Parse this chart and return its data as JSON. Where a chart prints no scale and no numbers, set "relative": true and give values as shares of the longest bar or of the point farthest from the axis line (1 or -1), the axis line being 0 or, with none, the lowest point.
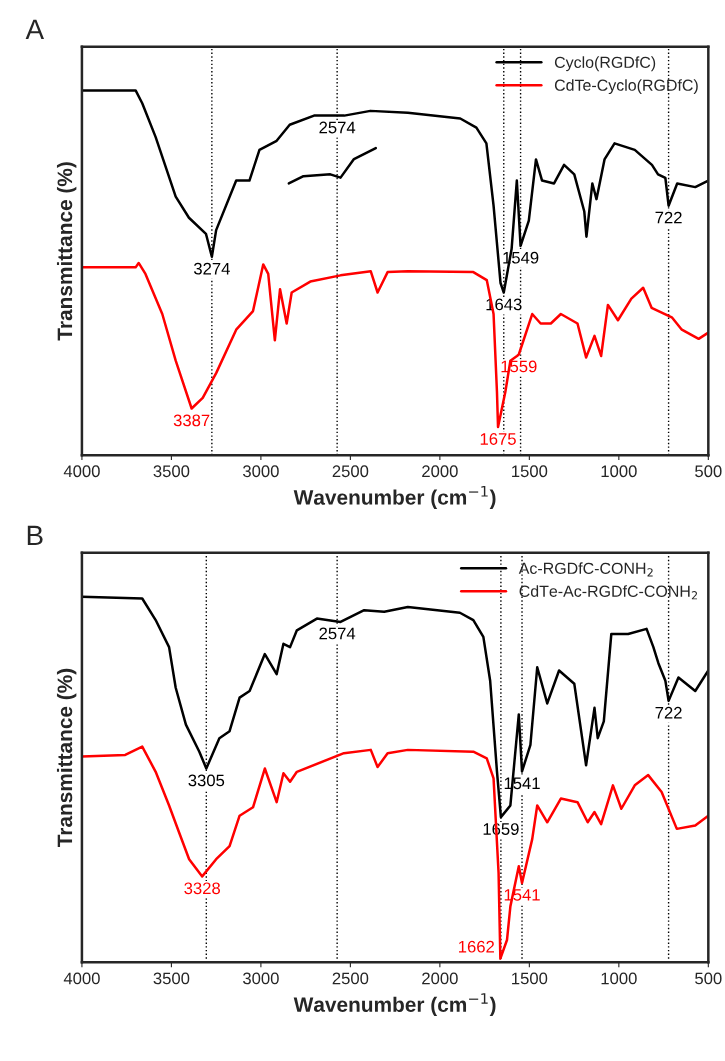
{
  "chart_data": [
    {
      "type": "line",
      "title": "A",
      "xlabel": "Wavenumber (cm$^{−1}$)",
      "ylabel": "Transmittance (%)",
      "relative": true,
      "xlim": [
        4000,
        500
      ],
      "xticks": [
        4000,
        3500,
        3000,
        2500,
        2000,
        1500,
        1000,
        500
      ],
      "tick_labels": "x",
      "grid": false,
      "legend": "top right",
      "line_style": "solid",
      "series": [
        {
          "name": "Cyclo(RGDfC)",
          "color": "#000000",
          "x": [
            4000,
            3700,
            3663,
            3588,
            3476,
            3402,
            3307,
            3274,
            3250,
            3138,
            3064,
            3008,
            2912,
            2839,
            2703,
            2534,
            2388,
            2179,
            1886,
            1796,
            1740,
            1700,
            1661,
            1643,
            1599,
            1570,
            1549,
            1503,
            1463,
            1429,
            1362,
            1306,
            1249,
            1193,
            1181,
            1148,
            1125,
            1080,
            1024,
            911,
            815,
            781,
            740,
            722,
            674,
            573,
            500
          ],
          "values": [
            1.0,
            1.0,
            0.965,
            0.872,
            0.709,
            0.651,
            0.607,
            0.544,
            0.617,
            0.753,
            0.753,
            0.837,
            0.862,
            0.906,
            0.931,
            0.931,
            0.944,
            0.939,
            0.923,
            0.898,
            0.855,
            0.684,
            0.472,
            0.446,
            0.566,
            0.753,
            0.574,
            0.643,
            0.811,
            0.753,
            0.745,
            0.796,
            0.77,
            0.668,
            0.599,
            0.745,
            0.702,
            0.811,
            0.855,
            0.837,
            0.796,
            0.77,
            0.76,
            0.684,
            0.745,
            0.735,
            0.753
          ]
        },
        {
          "color": "#000000",
          "x": [
            2844,
            2762,
            2612,
            2555,
            2480,
            2358
          ],
          "values": [
            0.745,
            0.765,
            0.77,
            0.761,
            0.812,
            0.842
          ]
        },
        {
          "name": "CdTe-Cyclo(RGDfC)",
          "color": "#ff0000",
          "x": [
            4000,
            3700,
            3683,
            3645,
            3551,
            3476,
            3387,
            3325,
            3250,
            3138,
            3044,
            2987,
            2959,
            2922,
            2893,
            2856,
            2828,
            2724,
            2555,
            2386,
            2348,
            2292,
            2179,
            1813,
            1738,
            1700,
            1681,
            1675,
            1634,
            1606,
            1569,
            1559,
            1484,
            1437,
            1380,
            1324,
            1231,
            1183,
            1136,
            1099,
            1061,
            1005,
            930,
            864,
            817,
            704,
            648,
            554,
            500
          ],
          "values": [
            0.515,
            0.515,
            0.527,
            0.497,
            0.387,
            0.259,
            0.128,
            0.157,
            0.225,
            0.344,
            0.395,
            0.523,
            0.497,
            0.315,
            0.455,
            0.361,
            0.446,
            0.476,
            0.493,
            0.504,
            0.446,
            0.502,
            0.504,
            0.502,
            0.48,
            0.387,
            0.174,
            0.077,
            0.174,
            0.259,
            0.272,
            0.276,
            0.387,
            0.361,
            0.361,
            0.387,
            0.361,
            0.268,
            0.327,
            0.272,
            0.412,
            0.37,
            0.429,
            0.459,
            0.404,
            0.378,
            0.344,
            0.319,
            0.336
          ]
        }
      ],
      "ref_lines": [
        {
          "axis": "x",
          "value": 3274,
          "color": "#000000",
          "line_style": "dotted"
        },
        {
          "axis": "x",
          "value": 2574,
          "color": "#000000",
          "line_style": "dotted"
        },
        {
          "axis": "x",
          "value": 1643,
          "color": "#000000",
          "line_style": "dotted"
        },
        {
          "axis": "x",
          "value": 1549,
          "color": "#000000",
          "line_style": "dotted"
        },
        {
          "axis": "x",
          "value": 722,
          "color": "#000000",
          "line_style": "dotted"
        }
      ],
      "annotations": [
        {
          "text": "3274",
          "x": 3274,
          "y": 0.544
        },
        {
          "text": "2574",
          "x": 2574,
          "y": 0.931
        },
        {
          "text": "1549",
          "x": 1549,
          "y": 0.574
        },
        {
          "text": "1643",
          "x": 1643,
          "y": 0.446
        },
        {
          "text": "722",
          "x": 722,
          "y": 0.684
        },
        {
          "text": "3387",
          "x": 3387,
          "y": 0.128
        },
        {
          "text": "1559",
          "x": 1559,
          "y": 0.276
        },
        {
          "text": "1675",
          "x": 1675,
          "y": 0.077
        }
      ]
    },
    {
      "type": "line",
      "title": "B",
      "xlabel": "Wavenumber (cm$^{−1}$)",
      "ylabel": "Transmittance (%)",
      "relative": true,
      "xlim": [
        4000,
        500
      ],
      "xticks": [
        4000,
        3500,
        3000,
        2500,
        2000,
        1500,
        1000,
        500
      ],
      "tick_labels": "x",
      "grid": false,
      "legend": "top right",
      "line_style": "solid",
      "series": [
        {
          "name": "Ac-RGDfC-CONH$_{2}$",
          "color": "#000000",
          "x": [
            4000,
            3663,
            3588,
            3513,
            3476,
            3419,
            3344,
            3305,
            3232,
            3175,
            3119,
            3063,
            2978,
            2912,
            2874,
            2837,
            2799,
            2687,
            2555,
            2423,
            2311,
            2179,
            1888,
            1813,
            1757,
            1719,
            1681,
            1659,
            1606,
            1559,
            1541,
            1494,
            1456,
            1400,
            1334,
            1249,
            1183,
            1136,
            1118,
            1084,
            1042,
            948,
            845,
            807,
            779,
            740,
            722,
            667,
            573,
            500
          ],
          "values": [
            1.0,
            0.995,
            0.936,
            0.862,
            0.751,
            0.65,
            0.576,
            0.53,
            0.613,
            0.632,
            0.724,
            0.742,
            0.843,
            0.788,
            0.871,
            0.862,
            0.908,
            0.94,
            0.931,
            0.963,
            0.959,
            0.972,
            0.956,
            0.936,
            0.89,
            0.77,
            0.522,
            0.397,
            0.429,
            0.678,
            0.522,
            0.595,
            0.807,
            0.708,
            0.798,
            0.762,
            0.539,
            0.696,
            0.613,
            0.659,
            0.898,
            0.898,
            0.912,
            0.862,
            0.818,
            0.77,
            0.715,
            0.779,
            0.742,
            0.798
          ]
        },
        {
          "name": "CdTe-Ac-RGDfC-CONH$_{2}$",
          "color": "#ff0000",
          "x": [
            4000,
            3758,
            3663,
            3588,
            3513,
            3457,
            3401,
            3328,
            3250,
            3175,
            3119,
            3044,
            2978,
            2912,
            2874,
            2837,
            2799,
            2536,
            2386,
            2348,
            2292,
            2179,
            1813,
            1738,
            1700,
            1672,
            1662,
            1625,
            1606,
            1559,
            1541,
            1484,
            1456,
            1400,
            1324,
            1231,
            1174,
            1136,
            1099,
            1033,
            986,
            911,
            836,
            761,
            676,
            573,
            500
          ],
          "values": [
            0.563,
            0.567,
            0.59,
            0.521,
            0.429,
            0.355,
            0.282,
            0.235,
            0.282,
            0.318,
            0.401,
            0.424,
            0.53,
            0.438,
            0.517,
            0.494,
            0.521,
            0.572,
            0.581,
            0.534,
            0.572,
            0.581,
            0.576,
            0.558,
            0.503,
            0.245,
            0.01,
            0.061,
            0.153,
            0.263,
            0.217,
            0.337,
            0.429,
            0.383,
            0.448,
            0.438,
            0.383,
            0.411,
            0.378,
            0.484,
            0.42,
            0.484,
            0.512,
            0.466,
            0.365,
            0.374,
            0.401
          ]
        }
      ],
      "ref_lines": [
        {
          "axis": "x",
          "value": 3305,
          "color": "#000000",
          "line_style": "dotted"
        },
        {
          "axis": "x",
          "value": 2574,
          "color": "#000000",
          "line_style": "dotted"
        },
        {
          "axis": "x",
          "value": 1659,
          "color": "#000000",
          "line_style": "dotted"
        },
        {
          "axis": "x",
          "value": 1541,
          "color": "#000000",
          "line_style": "dotted"
        },
        {
          "axis": "x",
          "value": 722,
          "color": "#000000",
          "line_style": "dotted"
        }
      ],
      "annotations": [
        {
          "text": "3305",
          "x": 3305,
          "y": 0.53
        },
        {
          "text": "2574",
          "x": 2574,
          "y": 0.932
        },
        {
          "text": "1541",
          "x": 1541,
          "y": 0.522
        },
        {
          "text": "1659",
          "x": 1659,
          "y": 0.397
        },
        {
          "text": "722",
          "x": 722,
          "y": 0.715
        },
        {
          "text": "3328",
          "x": 3328,
          "y": 0.235
        },
        {
          "text": "1541",
          "x": 1541,
          "y": 0.217
        },
        {
          "text": "1662",
          "x": 1662,
          "y": 0.01
        }
      ]
    }
  ]
}
